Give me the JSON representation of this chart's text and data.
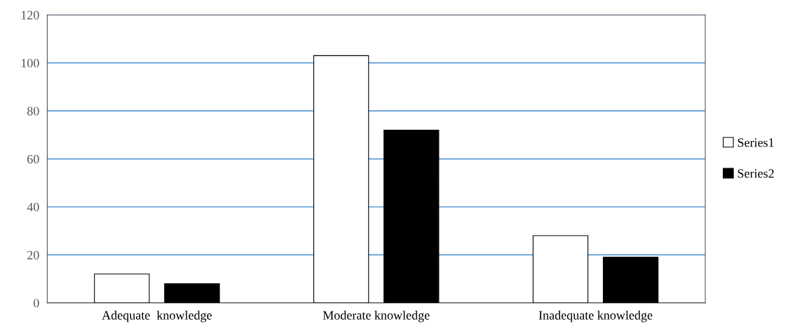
{
  "chart_data": {
    "type": "bar",
    "categories": [
      "Adequate  knowledge",
      "Moderate knowledge",
      "Inadequate knowledge"
    ],
    "series": [
      {
        "name": "Series1",
        "color": "#ffffff",
        "values": [
          12,
          103,
          28
        ]
      },
      {
        "name": "Series2",
        "color": "#000000",
        "values": [
          8,
          72,
          19
        ]
      }
    ],
    "ylim": [
      0,
      120
    ],
    "yticks": [
      0,
      20,
      40,
      60,
      80,
      100,
      120
    ],
    "grid": "y",
    "legend": "right"
  }
}
